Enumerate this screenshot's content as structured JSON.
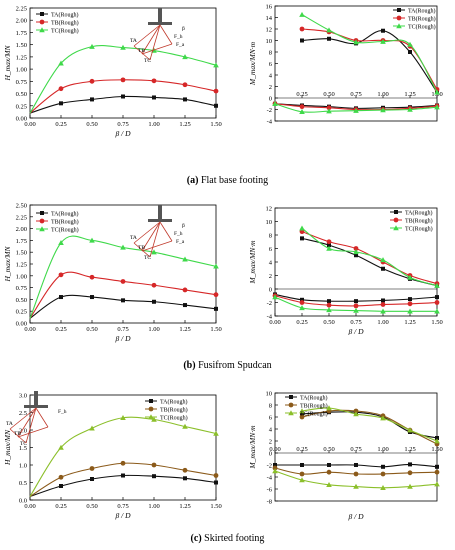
{
  "colors": {
    "TA": "#111111",
    "TB": "#d62728",
    "TC": "#3fd94a",
    "TA_c": "#111111",
    "TB_c": "#8b5a1a",
    "TC_c": "#8bbf2a"
  },
  "captions": {
    "a": {
      "letter": "(a)",
      "text": " Flat base footing"
    },
    "b": {
      "letter": "(b)",
      "text": " Fusifrom Spudcan"
    },
    "c": {
      "letter": "(c)",
      "text": " Skirted footing"
    }
  },
  "chart_data": [
    {
      "id": "a-left",
      "type": "line",
      "xlabel": "β / D",
      "ylabel": "H_max/MN",
      "xlim": [
        0,
        1.5
      ],
      "ylim": [
        0,
        2.25
      ],
      "xticks": [
        "0.00",
        "0.25",
        "0.50",
        "0.75",
        "1.00",
        "1.25",
        "1.50"
      ],
      "yticks": [
        "0.00",
        "0.25",
        "0.50",
        "0.75",
        "1.00",
        "1.25",
        "1.50",
        "1.75",
        "2.00",
        "2.25"
      ],
      "legend_position": "top-left",
      "diagram_labels": [
        "TA",
        "TB",
        "TC",
        "β",
        "F_h",
        "F_a"
      ],
      "series": [
        {
          "name": "TA(Rough)",
          "x": [
            0.25,
            0.5,
            0.75,
            1.0,
            1.25,
            1.5
          ],
          "values": [
            0.3,
            0.38,
            0.44,
            0.42,
            0.38,
            0.25
          ]
        },
        {
          "name": "TB(Rough)",
          "x": [
            0.25,
            0.5,
            0.75,
            1.0,
            1.25,
            1.5
          ],
          "values": [
            0.6,
            0.75,
            0.78,
            0.76,
            0.68,
            0.55
          ]
        },
        {
          "name": "TC(Rough)",
          "x": [
            0.25,
            0.5,
            0.75,
            1.0,
            1.25,
            1.5
          ],
          "values": [
            1.12,
            1.46,
            1.44,
            1.38,
            1.25,
            1.08
          ]
        }
      ]
    },
    {
      "id": "a-right",
      "type": "line",
      "xlabel": "",
      "ylabel": "M_max/MN·m",
      "xlim": [
        0,
        1.5
      ],
      "ylim": [
        -4,
        16
      ],
      "xticks": [
        "0.25",
        "0.50",
        "0.75",
        "1.00",
        "1.25",
        "1.50"
      ],
      "yticks": [
        "-4",
        "-2",
        "0",
        "2",
        "4",
        "6",
        "8",
        "10",
        "12",
        "14",
        "16"
      ],
      "legend_position": "top-right",
      "series": [
        {
          "name": "TA(Rough)",
          "x": [
            0.25,
            0.5,
            0.75,
            1.0,
            1.25,
            1.5
          ],
          "values": [
            10,
            10.3,
            9.5,
            11.7,
            8,
            1
          ]
        },
        {
          "name": "TB(Rough)",
          "x": [
            0.25,
            0.5,
            0.75,
            1.0,
            1.25,
            1.5
          ],
          "values": [
            12,
            11.5,
            10,
            10,
            9,
            1.5
          ]
        },
        {
          "name": "TC(Rough)",
          "x": [
            0.25,
            0.5,
            0.75,
            1.0,
            1.25,
            1.5
          ],
          "values": [
            14.5,
            11.8,
            9.7,
            9.8,
            9.3,
            1
          ]
        },
        {
          "name": "TA(Rough) lower",
          "x": [
            0,
            0.25,
            0.5,
            0.75,
            1.0,
            1.25,
            1.5
          ],
          "values": [
            -1,
            -1.3,
            -1.5,
            -1.8,
            -1.7,
            -1.6,
            -1.3
          ]
        },
        {
          "name": "TB(Rough) lower",
          "x": [
            0,
            0.25,
            0.5,
            0.75,
            1.0,
            1.25,
            1.5
          ],
          "values": [
            -1,
            -1.5,
            -1.7,
            -2,
            -2,
            -1.8,
            -1.4
          ]
        },
        {
          "name": "TC(Rough) lower",
          "x": [
            0,
            0.25,
            0.5,
            0.75,
            1.0,
            1.25,
            1.5
          ],
          "values": [
            -1,
            -2.4,
            -2.3,
            -2.2,
            -2.1,
            -2,
            -1.6
          ]
        }
      ]
    },
    {
      "id": "b-left",
      "type": "line",
      "xlabel": "β / D",
      "ylabel": "H_max/MN",
      "xlim": [
        0,
        1.5
      ],
      "ylim": [
        0,
        2.5
      ],
      "xticks": [
        "0.00",
        "0.25",
        "0.50",
        "0.75",
        "1.00",
        "1.25",
        "1.50"
      ],
      "yticks": [
        "0.00",
        "0.25",
        "0.50",
        "0.75",
        "1.00",
        "1.25",
        "1.50",
        "1.75",
        "2.00",
        "2.25",
        "2.50"
      ],
      "legend_position": "top-left",
      "diagram_labels": [
        "TA",
        "TB",
        "TC",
        "β",
        "F_h",
        "F_a"
      ],
      "series": [
        {
          "name": "TA(Rough)",
          "x": [
            0.25,
            0.5,
            0.75,
            1.0,
            1.25,
            1.5
          ],
          "values": [
            0.55,
            0.55,
            0.48,
            0.45,
            0.38,
            0.3
          ]
        },
        {
          "name": "TB(Rough)",
          "x": [
            0.25,
            0.5,
            0.75,
            1.0,
            1.25,
            1.5
          ],
          "values": [
            1.02,
            0.97,
            0.88,
            0.8,
            0.7,
            0.6
          ]
        },
        {
          "name": "TC(Rough)",
          "x": [
            0.25,
            0.5,
            0.75,
            1.0,
            1.25,
            1.5
          ],
          "values": [
            1.7,
            1.75,
            1.6,
            1.5,
            1.35,
            1.2
          ]
        }
      ]
    },
    {
      "id": "b-right",
      "type": "line",
      "xlabel": "β / D",
      "ylabel": "M_max/MN·m",
      "xlim": [
        0,
        1.5
      ],
      "ylim": [
        -4,
        12
      ],
      "xticks": [
        "0.00",
        "0.25",
        "0.50",
        "0.75",
        "1.00",
        "1.25",
        "1.50"
      ],
      "yticks": [
        "-4",
        "-2",
        "0",
        "2",
        "4",
        "6",
        "8",
        "10",
        "12"
      ],
      "legend_position": "top-right",
      "series": [
        {
          "name": "TA(Rough)",
          "x": [
            0.25,
            0.5,
            0.75,
            1.0,
            1.25,
            1.5
          ],
          "values": [
            7.5,
            6.5,
            5,
            3,
            1.5,
            0.5
          ]
        },
        {
          "name": "TB(Rough)",
          "x": [
            0.25,
            0.5,
            0.75,
            1.0,
            1.25,
            1.5
          ],
          "values": [
            8.5,
            7,
            6,
            4,
            2,
            0.8
          ]
        },
        {
          "name": "TC(Rough)",
          "x": [
            0.25,
            0.5,
            0.75,
            1.0,
            1.25,
            1.5
          ],
          "values": [
            9,
            6,
            5.5,
            4.3,
            1.7,
            0.5
          ]
        },
        {
          "name": "TA(Rough) lower",
          "x": [
            0,
            0.25,
            0.5,
            0.75,
            1.0,
            1.25,
            1.5
          ],
          "values": [
            -0.8,
            -1.6,
            -1.8,
            -1.8,
            -1.7,
            -1.5,
            -1.2
          ]
        },
        {
          "name": "TB(Rough) lower",
          "x": [
            0,
            0.25,
            0.5,
            0.75,
            1.0,
            1.25,
            1.5
          ],
          "values": [
            -1,
            -2,
            -2.4,
            -2.5,
            -2.3,
            -2.2,
            -2
          ]
        },
        {
          "name": "TC(Rough) lower",
          "x": [
            0,
            0.25,
            0.5,
            0.75,
            1.0,
            1.25,
            1.5
          ],
          "values": [
            -1.2,
            -2.8,
            -3.1,
            -3.2,
            -3.3,
            -3.3,
            -3.3
          ]
        }
      ]
    },
    {
      "id": "c-left",
      "type": "line",
      "xlabel": "β / D",
      "ylabel": "H_max/MN",
      "xlim": [
        0,
        1.5
      ],
      "ylim": [
        0,
        3.0
      ],
      "xticks": [
        "0.00",
        "0.25",
        "0.50",
        "0.75",
        "1.00",
        "1.25",
        "1.50"
      ],
      "yticks": [
        "0.0",
        "0.5",
        "1.0",
        "1.5",
        "2.0",
        "2.5",
        "3.0"
      ],
      "legend_position": "top-right",
      "diagram_labels": [
        "TA",
        "TB",
        "TC",
        "F_h"
      ],
      "series": [
        {
          "name": "TA(Rough)",
          "x": [
            0.25,
            0.5,
            0.75,
            1.0,
            1.25,
            1.5
          ],
          "values": [
            0.4,
            0.6,
            0.7,
            0.68,
            0.62,
            0.5
          ]
        },
        {
          "name": "TB(Rough)",
          "x": [
            0.25,
            0.5,
            0.75,
            1.0,
            1.25,
            1.5
          ],
          "values": [
            0.65,
            0.9,
            1.05,
            1.0,
            0.85,
            0.7
          ]
        },
        {
          "name": "TC(Rough)",
          "x": [
            0.25,
            0.5,
            0.75,
            1.0,
            1.25,
            1.5
          ],
          "values": [
            1.5,
            2.05,
            2.35,
            2.3,
            2.1,
            1.9
          ]
        }
      ]
    },
    {
      "id": "c-right",
      "type": "line",
      "xlabel": "β / D",
      "ylabel": "M_max/MN·m",
      "xlim": [
        0,
        1.5
      ],
      "ylim": [
        -8,
        10
      ],
      "xticks": [
        "0.00",
        "0.25",
        "0.50",
        "0.75",
        "1.00",
        "1.25",
        "1.50"
      ],
      "yticks": [
        "-8",
        "-6",
        "-4",
        "-2",
        "0",
        "2",
        "4",
        "6",
        "8",
        "10"
      ],
      "legend_position": "top-left",
      "series": [
        {
          "name": "TA(Rough)",
          "x": [
            0.25,
            0.5,
            0.75,
            1.0,
            1.25,
            1.5
          ],
          "values": [
            6.5,
            6.8,
            6.8,
            6,
            3.5,
            2.5
          ]
        },
        {
          "name": "TB(Rough)",
          "x": [
            0.25,
            0.5,
            0.75,
            1.0,
            1.25,
            1.5
          ],
          "values": [
            6,
            7,
            7,
            6.2,
            3.8,
            1.5
          ]
        },
        {
          "name": "TC(Rough)",
          "x": [
            0.25,
            0.5,
            0.75,
            1.0,
            1.25,
            1.5
          ],
          "values": [
            7,
            7.5,
            6.5,
            5.8,
            3.8,
            2
          ]
        },
        {
          "name": "TA(Rough) lower",
          "x": [
            0,
            0.25,
            0.5,
            0.75,
            1.0,
            1.25,
            1.5
          ],
          "values": [
            -2,
            -2,
            -2,
            -2,
            -2.3,
            -1.9,
            -2.3
          ]
        },
        {
          "name": "TB(Rough) lower",
          "x": [
            0,
            0.25,
            0.5,
            0.75,
            1.0,
            1.25,
            1.5
          ],
          "values": [
            -2.5,
            -3.5,
            -3.2,
            -3.5,
            -3.5,
            -3.3,
            -3.2
          ]
        },
        {
          "name": "TC(Rough) lower",
          "x": [
            0,
            0.25,
            0.5,
            0.75,
            1.0,
            1.25,
            1.5
          ],
          "values": [
            -3,
            -4.5,
            -5.3,
            -5.6,
            -5.8,
            -5.6,
            -5.2
          ]
        }
      ]
    }
  ]
}
